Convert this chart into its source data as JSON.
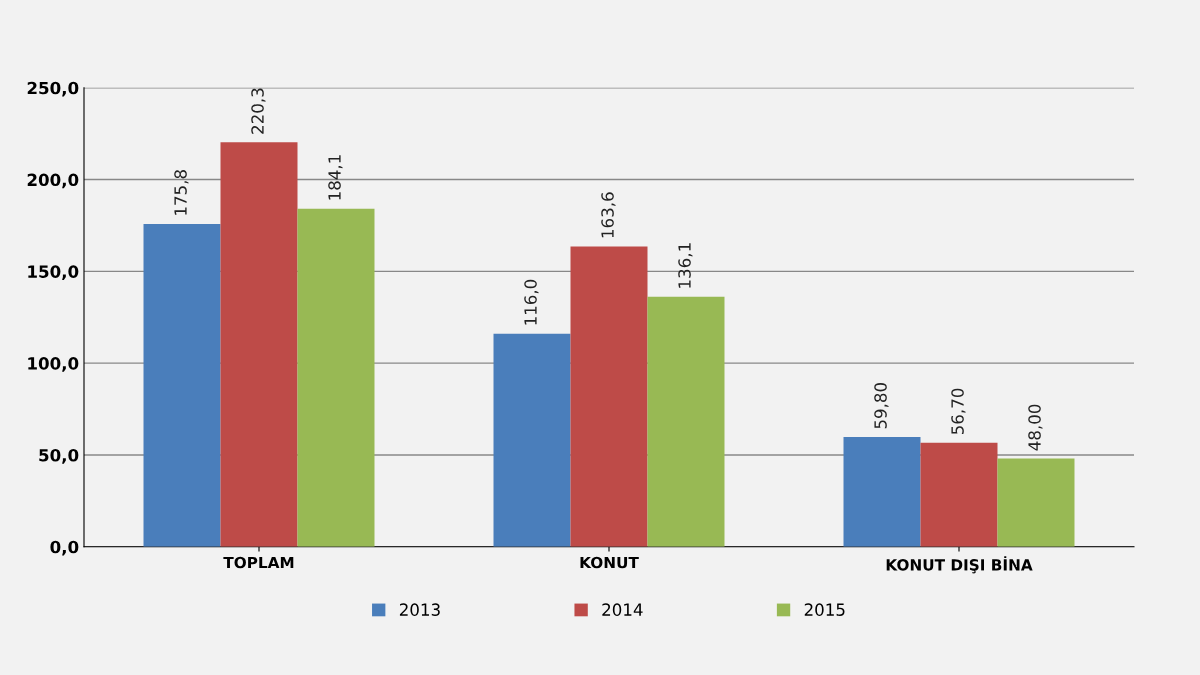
{
  "chart_data": {
    "type": "bar",
    "categories": [
      "TOPLAM",
      "KONUT",
      "KONUT DIŞI BİNA"
    ],
    "series": [
      {
        "name": "2013",
        "color": "#4a7ebb",
        "values": [
          175.8,
          116.0,
          59.8
        ],
        "value_labels": [
          "175,8",
          "116,0",
          "59,80"
        ]
      },
      {
        "name": "2014",
        "color": "#be4b48",
        "values": [
          220.3,
          163.6,
          56.7
        ],
        "value_labels": [
          "220,3",
          "163,6",
          "56,70"
        ]
      },
      {
        "name": "2015",
        "color": "#98b954",
        "values": [
          184.1,
          136.1,
          48.0
        ],
        "value_labels": [
          "184,1",
          "136,1",
          "48,00"
        ]
      }
    ],
    "ylim": [
      0,
      250
    ],
    "yticks": [
      {
        "value": 0,
        "label": "0,0"
      },
      {
        "value": 50,
        "label": "50,0"
      },
      {
        "value": 100,
        "label": "100,0"
      },
      {
        "value": 150,
        "label": "150,0"
      },
      {
        "value": 200,
        "label": "200,0"
      },
      {
        "value": 250,
        "label": "250,0"
      }
    ],
    "grid": "y",
    "legend": "bottom"
  }
}
